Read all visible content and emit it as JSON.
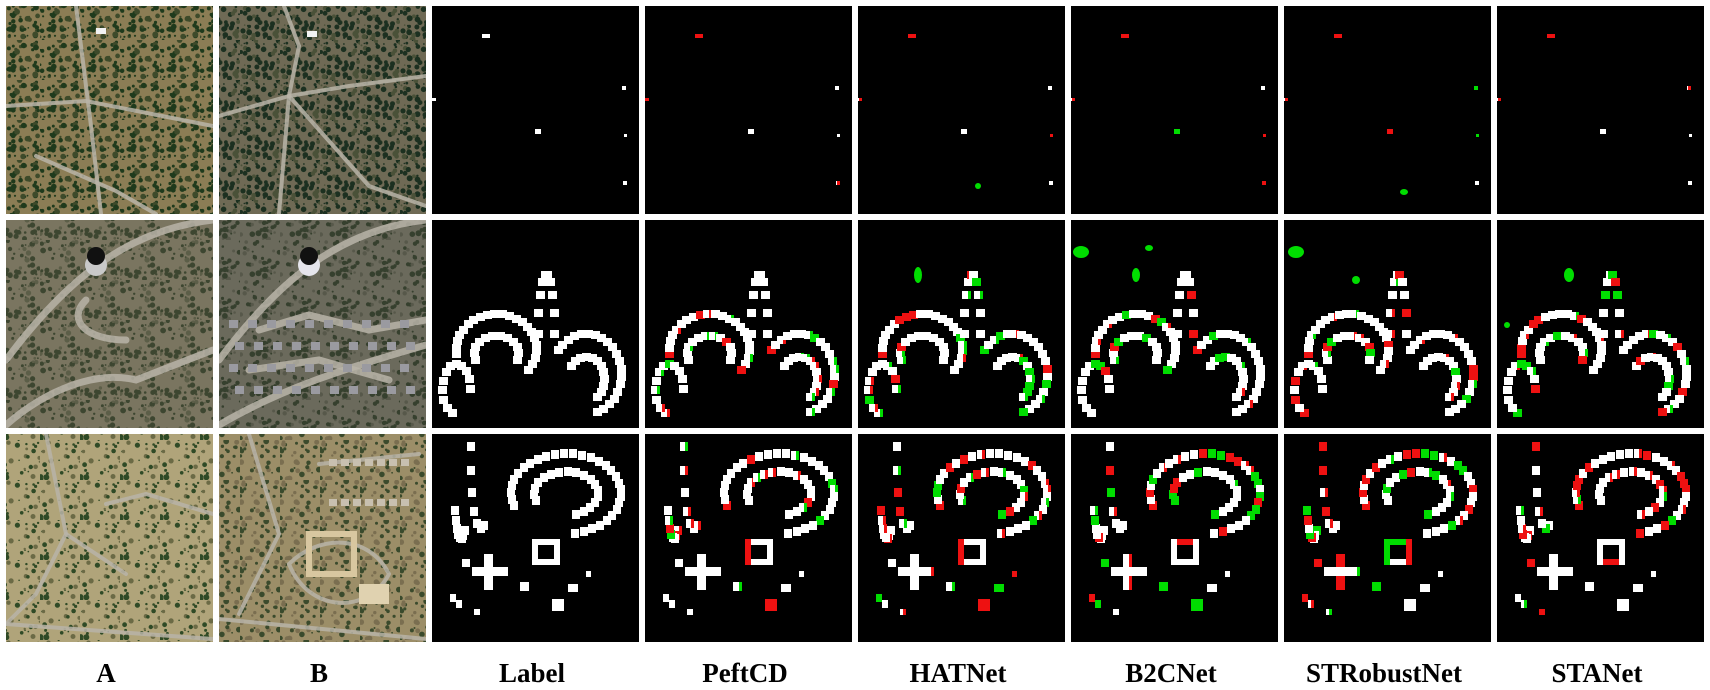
{
  "columns": [
    "A",
    "B",
    "Label",
    "PeftCD",
    "HATNet",
    "B2CNet",
    "STRobustNet",
    "STANet"
  ],
  "rows": 3,
  "colors": {
    "background": "#000000",
    "change": "#ffffff",
    "false_positive": "#00dd00",
    "false_negative": "#ee1111",
    "divider": "#ffffff"
  }
}
